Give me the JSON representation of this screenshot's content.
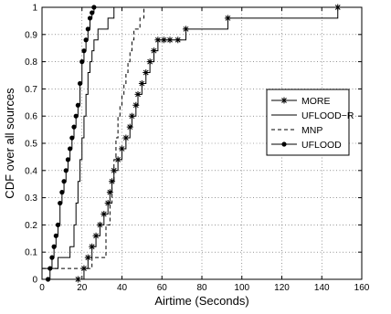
{
  "chart_data": {
    "type": "line",
    "title": "",
    "xlabel": "Airtime (Seconds)",
    "ylabel": "CDF over all sources",
    "xlim": [
      0,
      160
    ],
    "ylim": [
      0,
      1
    ],
    "xticks": [
      "0",
      "20",
      "40",
      "60",
      "80",
      "100",
      "120",
      "140",
      "160"
    ],
    "yticks": [
      "0",
      "0.1",
      "0.2",
      "0.3",
      "0.4",
      "0.5",
      "0.6",
      "0.7",
      "0.8",
      "0.9",
      "1"
    ],
    "grid": true,
    "legend_position": "right",
    "series": [
      {
        "name": "MORE",
        "style": "step",
        "line": "solid",
        "marker": "star",
        "color": "#000000",
        "x": [
          18,
          21,
          23,
          25,
          27,
          29,
          31,
          33,
          34,
          35,
          36,
          38,
          40,
          42,
          44,
          45,
          47,
          48,
          50,
          52,
          54,
          56,
          58,
          61,
          64,
          68,
          72,
          93,
          148
        ],
        "y": [
          0.0,
          0.04,
          0.08,
          0.12,
          0.16,
          0.2,
          0.24,
          0.28,
          0.32,
          0.36,
          0.4,
          0.44,
          0.48,
          0.52,
          0.56,
          0.6,
          0.64,
          0.68,
          0.72,
          0.76,
          0.8,
          0.84,
          0.88,
          0.88,
          0.88,
          0.88,
          0.92,
          0.96,
          1.0
        ]
      },
      {
        "name": "UFLOOD−R",
        "style": "step",
        "line": "solid",
        "marker": "none",
        "color": "#000000",
        "x": [
          2,
          8,
          14,
          16,
          17,
          18,
          19,
          20,
          21,
          22,
          23,
          24,
          25,
          26,
          28,
          30,
          33,
          36
        ],
        "y": [
          0.04,
          0.08,
          0.12,
          0.2,
          0.28,
          0.36,
          0.44,
          0.52,
          0.6,
          0.68,
          0.76,
          0.8,
          0.84,
          0.88,
          0.92,
          0.92,
          0.96,
          1.0
        ]
      },
      {
        "name": "MNP",
        "style": "step",
        "line": "dashed",
        "marker": "none",
        "color": "#000000",
        "x": [
          18,
          25,
          32,
          34,
          35,
          36,
          37,
          38,
          39,
          40,
          41,
          42,
          43,
          44,
          45,
          46,
          47,
          49,
          51
        ],
        "y": [
          0.04,
          0.08,
          0.2,
          0.28,
          0.36,
          0.44,
          0.52,
          0.6,
          0.64,
          0.68,
          0.72,
          0.76,
          0.8,
          0.84,
          0.88,
          0.92,
          0.92,
          0.96,
          1.0
        ]
      },
      {
        "name": "UFLOOD",
        "style": "step",
        "line": "solid",
        "marker": "dot",
        "color": "#000000",
        "x": [
          3,
          4,
          5,
          6,
          7,
          8,
          9,
          10,
          11,
          12,
          13,
          14,
          15,
          16,
          17,
          18,
          19,
          20,
          21,
          22,
          23,
          24,
          25,
          26
        ],
        "y": [
          0.0,
          0.04,
          0.08,
          0.12,
          0.16,
          0.2,
          0.28,
          0.32,
          0.36,
          0.4,
          0.44,
          0.48,
          0.52,
          0.56,
          0.6,
          0.64,
          0.72,
          0.8,
          0.84,
          0.88,
          0.92,
          0.96,
          0.98,
          1.0
        ]
      }
    ]
  }
}
